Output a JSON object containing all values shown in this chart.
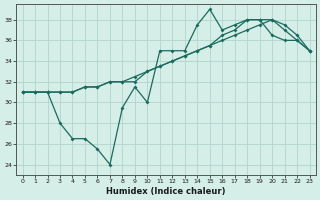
{
  "xlabel": "Humidex (Indice chaleur)",
  "ylabel": "",
  "background_color": "#d6eee8",
  "grid_color": "#b0d4cc",
  "line_color": "#1a6b5e",
  "xlim": [
    -0.5,
    23.5
  ],
  "ylim": [
    23,
    39.5
  ],
  "yticks": [
    24,
    26,
    28,
    30,
    32,
    34,
    36,
    38
  ],
  "xticks": [
    0,
    1,
    2,
    3,
    4,
    5,
    6,
    7,
    8,
    9,
    10,
    11,
    12,
    13,
    14,
    15,
    16,
    17,
    18,
    19,
    20,
    21,
    22,
    23
  ],
  "series1_x": [
    0,
    1,
    2,
    3,
    4,
    5,
    6,
    7,
    8,
    9,
    10,
    11,
    12,
    13,
    14,
    15,
    16,
    17,
    18,
    19,
    20,
    21,
    22,
    23
  ],
  "series1_y": [
    31,
    31,
    31,
    28,
    26.5,
    26.5,
    25.5,
    24,
    29.5,
    31.5,
    30,
    35,
    35,
    35,
    37.5,
    39,
    37,
    37.5,
    38,
    38,
    36.5,
    36,
    36,
    35
  ],
  "series2_x": [
    0,
    1,
    2,
    3,
    4,
    5,
    6,
    7,
    8,
    9,
    10,
    11,
    12,
    13,
    14,
    15,
    16,
    17,
    18,
    19,
    20,
    21,
    22,
    23
  ],
  "series2_y": [
    31,
    31,
    31,
    31,
    31,
    31.5,
    31.5,
    32,
    32,
    32,
    33,
    33.5,
    34,
    34.5,
    35,
    35.5,
    36.5,
    37,
    38,
    38,
    38,
    37,
    36,
    35
  ],
  "series3_x": [
    0,
    1,
    2,
    3,
    4,
    5,
    6,
    7,
    8,
    9,
    10,
    11,
    12,
    13,
    14,
    15,
    16,
    17,
    18,
    19,
    20,
    21,
    22,
    23
  ],
  "series3_y": [
    31,
    31,
    31,
    31,
    31,
    31.5,
    31.5,
    32,
    32,
    32.5,
    33,
    33.5,
    34,
    34.5,
    35,
    35.5,
    36,
    36.5,
    37,
    37.5,
    38,
    37.5,
    36.5,
    35
  ]
}
